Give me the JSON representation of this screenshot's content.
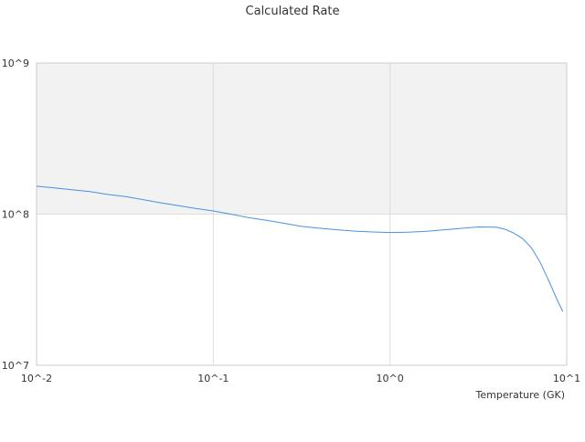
{
  "chart_data": {
    "type": "line",
    "title": "Calculated Rate",
    "xlabel": "Temperature (GK)",
    "ylabel": "",
    "xscale": "log",
    "yscale": "log",
    "xlim": [
      0.01,
      10
    ],
    "ylim": [
      10000000,
      1000000000
    ],
    "x_ticks": [
      {
        "value": 0.01,
        "label": "10^-2"
      },
      {
        "value": 0.1,
        "label": "10^-1"
      },
      {
        "value": 1,
        "label": "10^0"
      },
      {
        "value": 10,
        "label": "10^1"
      }
    ],
    "y_ticks": [
      {
        "value": 10000000,
        "label": "10^7"
      },
      {
        "value": 100000000,
        "label": "10^8"
      },
      {
        "value": 1000000000,
        "label": "10^9"
      }
    ],
    "grid": true,
    "shaded_band": {
      "from": 100000000,
      "to": 1000000000,
      "color": "#f2f2f2"
    },
    "line_color": "#4a90e2",
    "grid_color": "#dddddd",
    "series": [
      {
        "name": "",
        "x": [
          0.01,
          0.0126,
          0.0158,
          0.02,
          0.0251,
          0.0316,
          0.0398,
          0.0501,
          0.0631,
          0.0794,
          0.1,
          0.126,
          0.158,
          0.2,
          0.251,
          0.316,
          0.398,
          0.501,
          0.631,
          0.794,
          1.0,
          1.26,
          1.58,
          2.0,
          2.51,
          3.16,
          3.98,
          4.47,
          5.01,
          5.62,
          6.31,
          7.08,
          7.94,
          8.91,
          9.5
        ],
        "y": [
          153000000,
          149000000,
          145000000,
          141000000,
          135000000,
          131000000,
          125000000,
          119000000,
          114000000,
          109000000,
          105000000,
          100000000,
          95000000,
          91000000,
          87000000,
          83000000,
          80700000,
          78800000,
          77200000,
          76200000,
          75600000,
          75900000,
          76900000,
          78600000,
          80500000,
          82300000,
          82000000,
          79500000,
          75000000,
          69000000,
          60000000,
          48000000,
          36000000,
          26500000,
          22700000
        ]
      }
    ]
  }
}
